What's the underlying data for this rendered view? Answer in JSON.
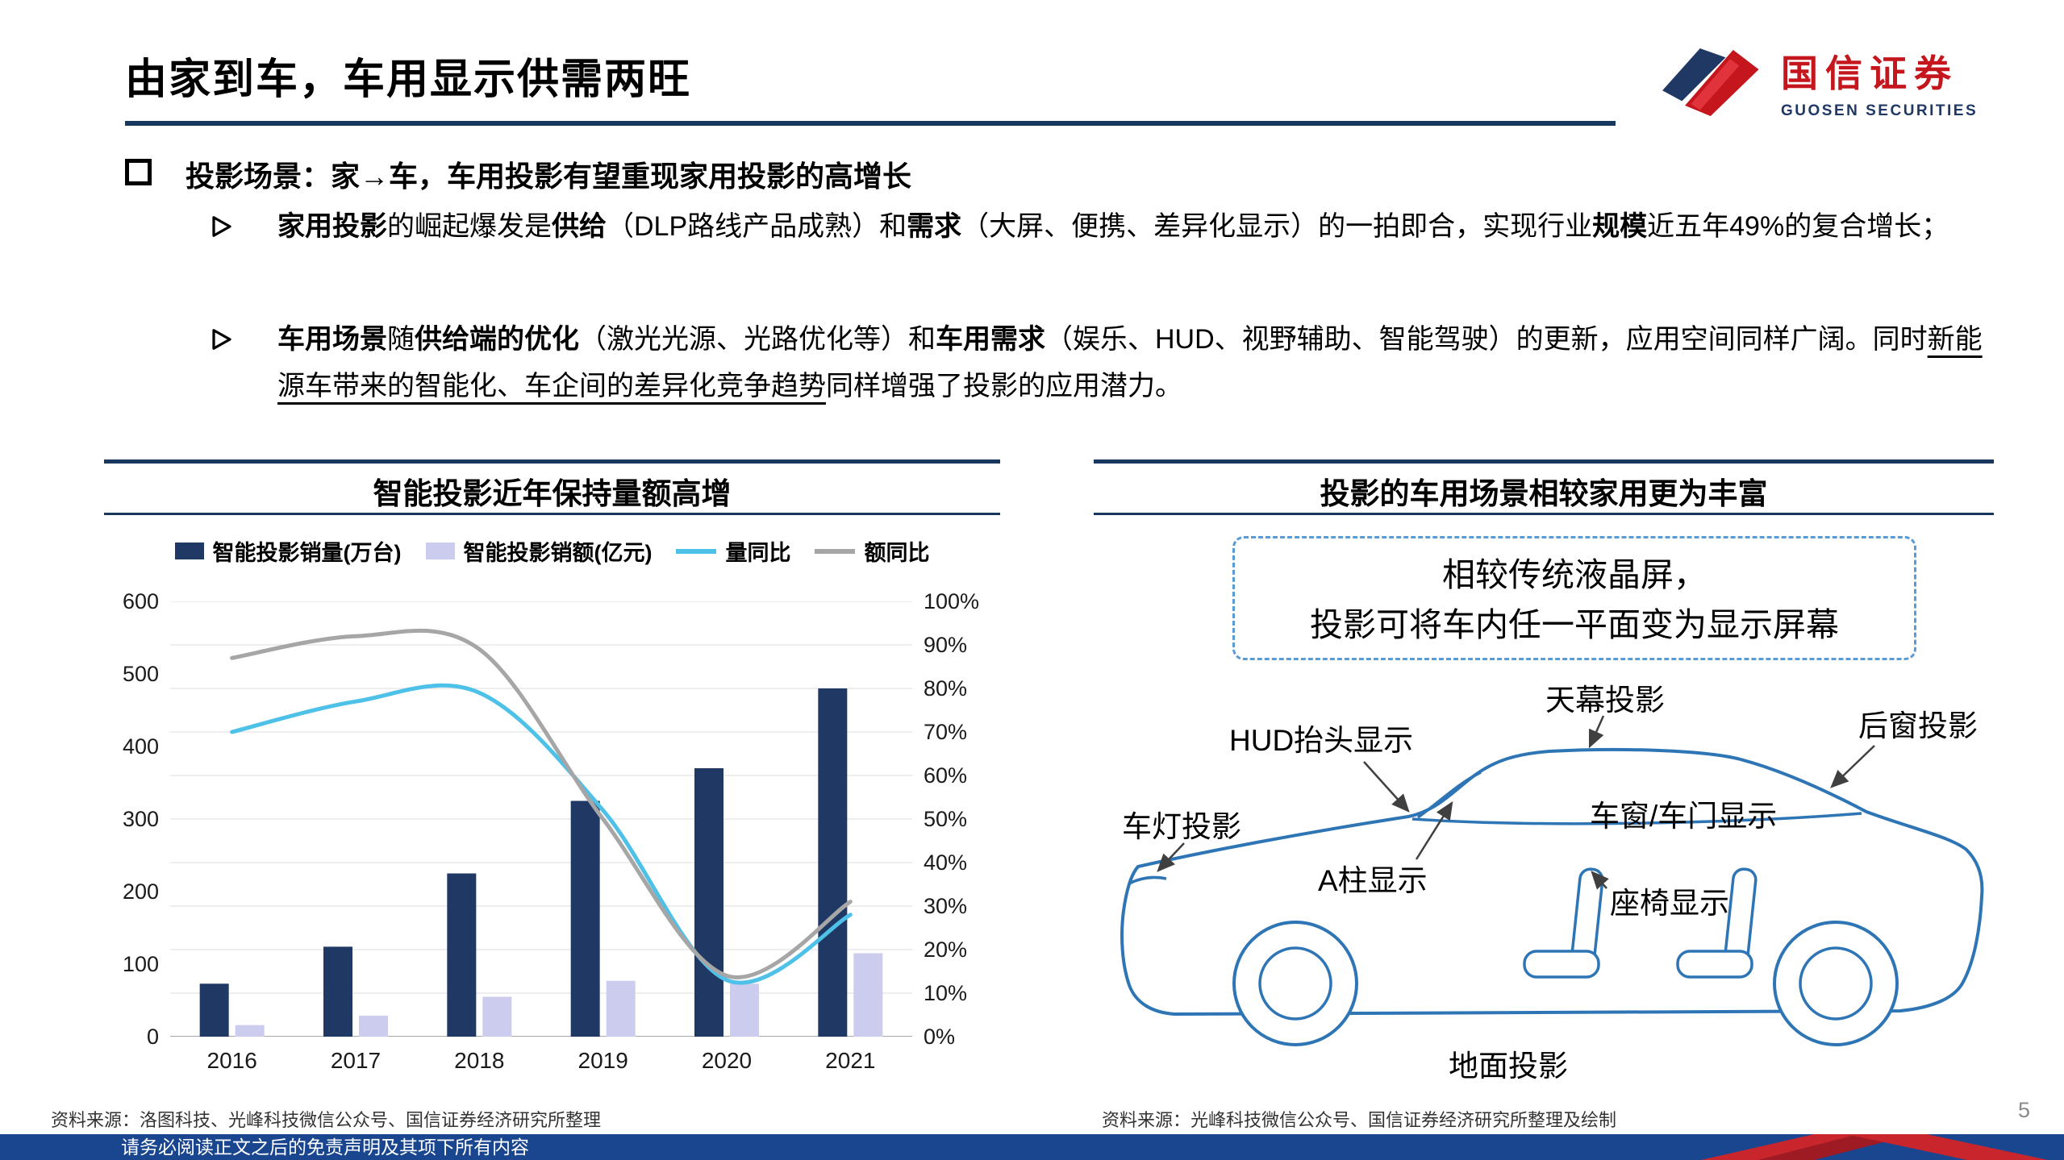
{
  "header": {
    "title": "由家到车，车用显示供需两旺",
    "logo_cn": "国信证券",
    "logo_en": "GUOSEN SECURITIES"
  },
  "bullets": {
    "main": "投影场景：家→车，车用投影有望重现家用投影的高增长",
    "sub1": {
      "s1": "家用投影",
      "s2": "的崛起爆发是",
      "s3": "供给",
      "s4": "（DLP路线产品成熟）和",
      "s5": "需求",
      "s6": "（大屏、便携、差异化显示）的一拍即合，实现行业",
      "s7": "规模",
      "s8": "近五年49%的复合增长；"
    },
    "sub2": {
      "s1": "车用场景",
      "s2": "随",
      "s3": "供给端的优化",
      "s4": "（激光光源、光路优化等）和",
      "s5": "车用需求",
      "s6": "（娱乐、HUD、视野辅助、智能驾驶）的更新，应用空间同样广阔。同时",
      "s7": "新能源车带来的智能化、车企间的差异化竞争趋势",
      "s8": "同样增强了投影的应用潜力。"
    }
  },
  "left_panel": {
    "title": "智能投影近年保持量额高增",
    "source": "资料来源：洛图科技、光峰科技微信公众号、国信证券经济研究所整理"
  },
  "chart_data": {
    "type": "bar+line combo",
    "title": "智能投影近年保持量额高增",
    "categories": [
      "2016",
      "2017",
      "2018",
      "2019",
      "2020",
      "2021"
    ],
    "series": [
      {
        "name": "智能投影销量(万台)",
        "type": "bar",
        "axis": "left",
        "color": "#1F3864",
        "values": [
          73,
          124,
          225,
          325,
          370,
          480
        ]
      },
      {
        "name": "智能投影销额(亿元)",
        "type": "bar",
        "axis": "left",
        "color": "#CCCCEF",
        "values": [
          16,
          29,
          55,
          77,
          73,
          115
        ]
      },
      {
        "name": "量同比",
        "type": "line",
        "axis": "right",
        "color": "#4EC1E8",
        "values": [
          70,
          77,
          79,
          52,
          13,
          28
        ]
      },
      {
        "name": "额同比",
        "type": "line",
        "axis": "right",
        "color": "#A6A6A6",
        "values": [
          87,
          92,
          89,
          50,
          14,
          31
        ]
      }
    ],
    "left_axis": {
      "min": 0,
      "max": 600,
      "step": 100
    },
    "right_axis": {
      "min": 0,
      "max": 100,
      "step": 10,
      "suffix": "%"
    },
    "grid": "horizontal",
    "legend_position": "top"
  },
  "right_panel": {
    "title": "投影的车用场景相较家用更为丰富",
    "callout_line1": "相较传统液晶屏，",
    "callout_line2": "投影可将车内任一平面变为显示屏幕",
    "car_labels": {
      "roof": "天幕投影",
      "rear_window": "后窗投影",
      "hud": "HUD抬头显示",
      "window_door": "车窗/车门显示",
      "headlight": "车灯投影",
      "a_pillar": "A柱显示",
      "seat": "座椅显示",
      "ground": "地面投影"
    },
    "source": "资料来源：光峰科技微信公众号、国信证券经济研究所整理及绘制"
  },
  "footer": {
    "disclaimer": "请务必阅读正文之后的免责声明及其项下所有内容",
    "page_number": "5"
  },
  "colors": {
    "accent_navy": "#17375E",
    "bar_navy": "#1F3864",
    "bar_lavender": "#CCCCEF",
    "line_cyan": "#4EC1E8",
    "line_gray": "#A6A6A6",
    "footer_blue": "#1A4690",
    "logo_red": "#C4161C",
    "car_outline_blue": "#2E75B6"
  }
}
